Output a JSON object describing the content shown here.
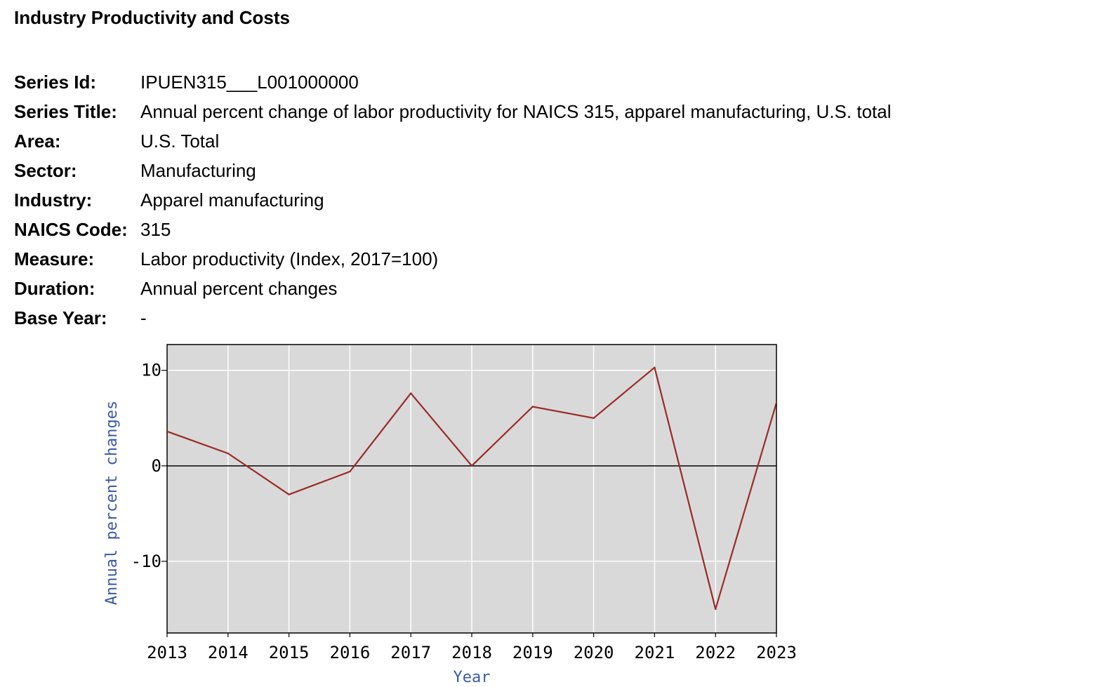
{
  "page": {
    "title": "Industry Productivity and Costs"
  },
  "meta": {
    "rows": [
      {
        "label": "Series Id:",
        "value": "IPUEN315___L001000000"
      },
      {
        "label": "Series Title:",
        "value": "Annual percent change of labor productivity for NAICS 315, apparel manufacturing, U.S. total"
      },
      {
        "label": "Area:",
        "value": "U.S. Total"
      },
      {
        "label": "Sector:",
        "value": "Manufacturing"
      },
      {
        "label": "Industry:",
        "value": "Apparel manufacturing"
      },
      {
        "label": "NAICS Code:",
        "value": "315"
      },
      {
        "label": "Measure:",
        "value": "Labor productivity (Index, 2017=100)"
      },
      {
        "label": "Duration:",
        "value": "Annual percent changes"
      },
      {
        "label": "Base Year:",
        "value": "-"
      }
    ]
  },
  "chart_data": {
    "type": "line",
    "x": [
      2013,
      2014,
      2015,
      2016,
      2017,
      2018,
      2019,
      2020,
      2021,
      2022,
      2023
    ],
    "series": [
      {
        "values": [
          3.6,
          1.3,
          -3.0,
          -0.6,
          7.6,
          0.0,
          6.2,
          5.0,
          10.3,
          -15.0,
          6.6
        ]
      }
    ],
    "xlabel": "Year",
    "ylabel": "Annual percent changes",
    "xlim": [
      2013,
      2023
    ],
    "ylim": [
      -17.5,
      12.7
    ],
    "yticks": [
      -10,
      0,
      10
    ],
    "xticks": [
      2013,
      2014,
      2015,
      2016,
      2017,
      2018,
      2019,
      2020,
      2021,
      2022,
      2023
    ],
    "grid": true,
    "zero_line": true,
    "colors": {
      "line": "#9b2a26",
      "plot_bg": "#d9d9d9",
      "grid": "#ffffff",
      "axis_label": "#3a5aa8",
      "frame": "#000000"
    }
  }
}
